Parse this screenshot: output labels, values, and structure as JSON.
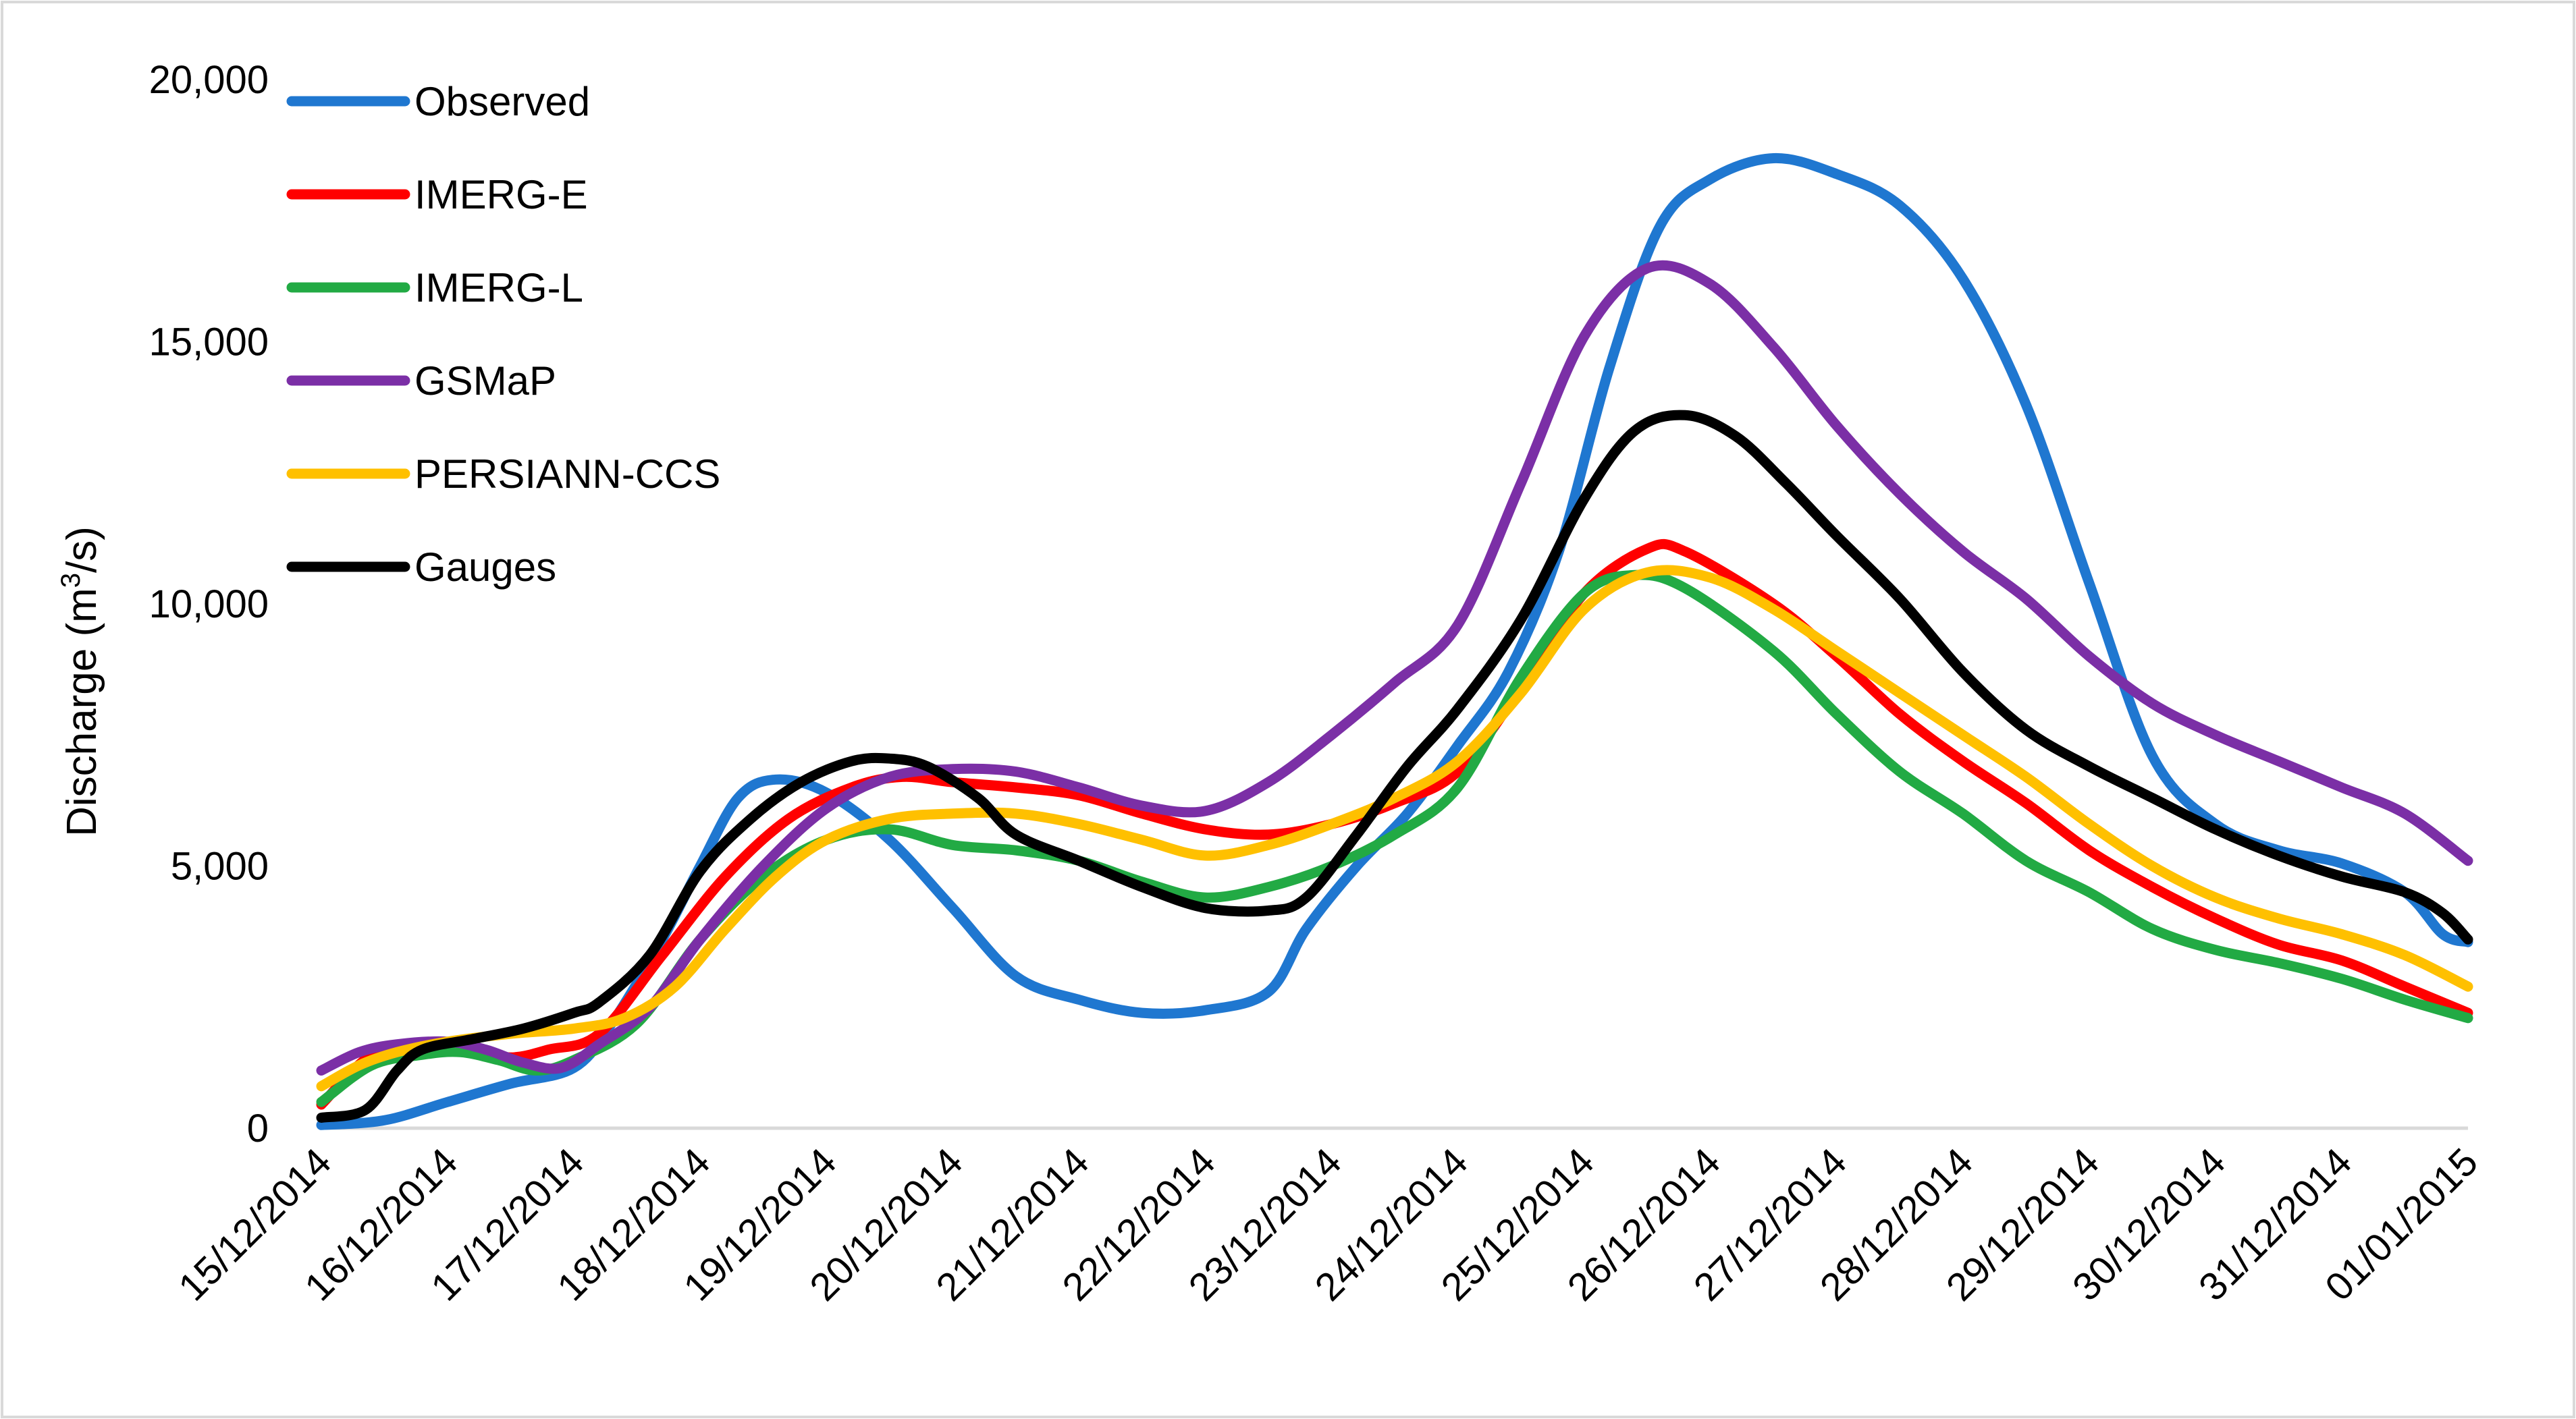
{
  "chart_data": {
    "type": "line",
    "title": "",
    "xlabel": "",
    "ylabel": "Discharge (m",
    "ylabel_superscript": "3",
    "ylabel_suffix": "/s)",
    "ylim": [
      0,
      20000
    ],
    "yticks": [
      0,
      5000,
      10000,
      15000,
      20000
    ],
    "ytick_labels": [
      "0",
      "5,000",
      "10,000",
      "15,000",
      "20,000"
    ],
    "xlim": [
      0,
      17
    ],
    "x_tick_labels": [
      "15/12/2014",
      "16/12/2014",
      "17/12/2014",
      "18/12/2014",
      "19/12/2014",
      "20/12/2014",
      "21/12/2014",
      "22/12/2014",
      "23/12/2014",
      "24/12/2014",
      "25/12/2014",
      "26/12/2014",
      "27/12/2014",
      "28/12/2014",
      "29/12/2014",
      "30/12/2014",
      "31/12/2014",
      "01/01/2015"
    ],
    "grid": false,
    "legend_position": "top-left",
    "series": [
      {
        "name": "Observed",
        "color": "#1f77d0",
        "points": [
          [
            0,
            60
          ],
          [
            0.5,
            150
          ],
          [
            1,
            500
          ],
          [
            1.5,
            850
          ],
          [
            2,
            1150
          ],
          [
            2.3,
            2000
          ],
          [
            2.7,
            3600
          ],
          [
            3,
            5000
          ],
          [
            3.3,
            6300
          ],
          [
            3.6,
            6650
          ],
          [
            4,
            6400
          ],
          [
            4.5,
            5500
          ],
          [
            5,
            4200
          ],
          [
            5.5,
            2900
          ],
          [
            6,
            2450
          ],
          [
            6.5,
            2200
          ],
          [
            7,
            2250
          ],
          [
            7.5,
            2600
          ],
          [
            7.8,
            3800
          ],
          [
            8.2,
            5000
          ],
          [
            8.6,
            6000
          ],
          [
            9,
            7300
          ],
          [
            9.4,
            8700
          ],
          [
            9.8,
            11000
          ],
          [
            10.2,
            14500
          ],
          [
            10.6,
            17200
          ],
          [
            11,
            18100
          ],
          [
            11.5,
            18500
          ],
          [
            12,
            18200
          ],
          [
            12.5,
            17600
          ],
          [
            13,
            16200
          ],
          [
            13.5,
            13800
          ],
          [
            14,
            10400
          ],
          [
            14.5,
            7100
          ],
          [
            15,
            5800
          ],
          [
            15.5,
            5300
          ],
          [
            16,
            5050
          ],
          [
            16.5,
            4500
          ],
          [
            16.8,
            3700
          ],
          [
            17,
            3550
          ]
        ]
      },
      {
        "name": "IMERG-E",
        "color": "#ff0000",
        "points": [
          [
            0,
            450
          ],
          [
            0.4,
            1400
          ],
          [
            0.8,
            1600
          ],
          [
            1.2,
            1500
          ],
          [
            1.5,
            1350
          ],
          [
            1.8,
            1500
          ],
          [
            2.2,
            1800
          ],
          [
            2.7,
            3300
          ],
          [
            3.2,
            4800
          ],
          [
            3.7,
            5900
          ],
          [
            4.2,
            6500
          ],
          [
            4.6,
            6700
          ],
          [
            5,
            6600
          ],
          [
            5.5,
            6500
          ],
          [
            6,
            6350
          ],
          [
            6.5,
            6000
          ],
          [
            7,
            5700
          ],
          [
            7.5,
            5600
          ],
          [
            8,
            5800
          ],
          [
            8.5,
            6200
          ],
          [
            9,
            6800
          ],
          [
            9.5,
            8400
          ],
          [
            10,
            10200
          ],
          [
            10.5,
            11050
          ],
          [
            10.8,
            11000
          ],
          [
            11.5,
            10000
          ],
          [
            12,
            9000
          ],
          [
            12.5,
            7900
          ],
          [
            13,
            7000
          ],
          [
            13.5,
            6200
          ],
          [
            14,
            5300
          ],
          [
            14.5,
            4600
          ],
          [
            15,
            4000
          ],
          [
            15.5,
            3500
          ],
          [
            16,
            3200
          ],
          [
            16.5,
            2700
          ],
          [
            17,
            2200
          ]
        ]
      },
      {
        "name": "IMERG-L",
        "color": "#22aa44",
        "points": [
          [
            0,
            500
          ],
          [
            0.4,
            1200
          ],
          [
            0.8,
            1400
          ],
          [
            1.1,
            1450
          ],
          [
            1.4,
            1300
          ],
          [
            1.7,
            1100
          ],
          [
            2,
            1300
          ],
          [
            2.5,
            2000
          ],
          [
            3,
            3600
          ],
          [
            3.5,
            4800
          ],
          [
            4,
            5500
          ],
          [
            4.5,
            5700
          ],
          [
            5,
            5400
          ],
          [
            5.5,
            5300
          ],
          [
            6,
            5100
          ],
          [
            6.5,
            4700
          ],
          [
            7,
            4400
          ],
          [
            7.5,
            4600
          ],
          [
            8,
            5000
          ],
          [
            8.5,
            5600
          ],
          [
            9,
            6500
          ],
          [
            9.5,
            8600
          ],
          [
            10,
            10200
          ],
          [
            10.4,
            10550
          ],
          [
            10.8,
            10300
          ],
          [
            11.5,
            9100
          ],
          [
            12,
            7900
          ],
          [
            12.5,
            6800
          ],
          [
            13,
            6000
          ],
          [
            13.5,
            5100
          ],
          [
            14,
            4500
          ],
          [
            14.5,
            3800
          ],
          [
            15,
            3400
          ],
          [
            15.5,
            3150
          ],
          [
            16,
            2850
          ],
          [
            16.5,
            2450
          ],
          [
            17,
            2100
          ]
        ]
      },
      {
        "name": "GSMaP",
        "color": "#7b2fa6",
        "points": [
          [
            0,
            1100
          ],
          [
            0.3,
            1450
          ],
          [
            0.6,
            1600
          ],
          [
            1,
            1650
          ],
          [
            1.3,
            1500
          ],
          [
            1.6,
            1250
          ],
          [
            1.9,
            1150
          ],
          [
            2.2,
            1600
          ],
          [
            2.6,
            2300
          ],
          [
            3,
            3600
          ],
          [
            3.5,
            5000
          ],
          [
            4,
            6100
          ],
          [
            4.5,
            6700
          ],
          [
            5,
            6850
          ],
          [
            5.5,
            6800
          ],
          [
            6,
            6500
          ],
          [
            6.5,
            6150
          ],
          [
            7,
            6050
          ],
          [
            7.5,
            6600
          ],
          [
            8,
            7500
          ],
          [
            8.5,
            8500
          ],
          [
            9,
            9600
          ],
          [
            9.5,
            12300
          ],
          [
            10,
            15100
          ],
          [
            10.5,
            16400
          ],
          [
            11,
            16100
          ],
          [
            11.5,
            14900
          ],
          [
            12,
            13400
          ],
          [
            12.5,
            12100
          ],
          [
            13,
            11000
          ],
          [
            13.5,
            10100
          ],
          [
            14,
            9000
          ],
          [
            14.5,
            8100
          ],
          [
            15,
            7500
          ],
          [
            15.5,
            7000
          ],
          [
            16,
            6500
          ],
          [
            16.5,
            6000
          ],
          [
            17,
            5100
          ]
        ]
      },
      {
        "name": "PERSIANN-CCS",
        "color": "#ffc000",
        "points": [
          [
            0,
            800
          ],
          [
            0.3,
            1200
          ],
          [
            0.6,
            1450
          ],
          [
            1,
            1650
          ],
          [
            1.5,
            1800
          ],
          [
            2,
            1900
          ],
          [
            2.4,
            2100
          ],
          [
            2.8,
            2700
          ],
          [
            3.2,
            3800
          ],
          [
            3.6,
            4800
          ],
          [
            4,
            5500
          ],
          [
            4.5,
            5900
          ],
          [
            5,
            6000
          ],
          [
            5.5,
            6000
          ],
          [
            6,
            5800
          ],
          [
            6.5,
            5500
          ],
          [
            7,
            5200
          ],
          [
            7.5,
            5400
          ],
          [
            8,
            5800
          ],
          [
            8.5,
            6300
          ],
          [
            9,
            7000
          ],
          [
            9.5,
            8300
          ],
          [
            10,
            9900
          ],
          [
            10.5,
            10600
          ],
          [
            11,
            10500
          ],
          [
            11.5,
            9900
          ],
          [
            12,
            9100
          ],
          [
            12.5,
            8300
          ],
          [
            13,
            7500
          ],
          [
            13.5,
            6700
          ],
          [
            14,
            5800
          ],
          [
            14.5,
            5000
          ],
          [
            15,
            4400
          ],
          [
            15.5,
            4000
          ],
          [
            16,
            3700
          ],
          [
            16.5,
            3300
          ],
          [
            17,
            2700
          ]
        ]
      },
      {
        "name": "Gauges",
        "color": "#000000",
        "points": [
          [
            0,
            200
          ],
          [
            0.35,
            350
          ],
          [
            0.6,
            1100
          ],
          [
            0.8,
            1500
          ],
          [
            1.2,
            1700
          ],
          [
            1.6,
            1900
          ],
          [
            2,
            2200
          ],
          [
            2.2,
            2400
          ],
          [
            2.6,
            3300
          ],
          [
            3,
            4900
          ],
          [
            3.4,
            5900
          ],
          [
            3.8,
            6600
          ],
          [
            4.2,
            7000
          ],
          [
            4.5,
            7050
          ],
          [
            4.8,
            6900
          ],
          [
            5.2,
            6300
          ],
          [
            5.5,
            5600
          ],
          [
            6,
            5100
          ],
          [
            6.5,
            4600
          ],
          [
            7,
            4200
          ],
          [
            7.5,
            4150
          ],
          [
            7.8,
            4400
          ],
          [
            8.2,
            5600
          ],
          [
            8.6,
            6900
          ],
          [
            9,
            8000
          ],
          [
            9.5,
            9700
          ],
          [
            10,
            12000
          ],
          [
            10.4,
            13300
          ],
          [
            10.8,
            13600
          ],
          [
            11.2,
            13200
          ],
          [
            11.6,
            12300
          ],
          [
            12,
            11300
          ],
          [
            12.5,
            10100
          ],
          [
            13,
            8700
          ],
          [
            13.5,
            7600
          ],
          [
            14,
            6900
          ],
          [
            14.5,
            6300
          ],
          [
            15,
            5700
          ],
          [
            15.5,
            5200
          ],
          [
            16,
            4800
          ],
          [
            16.5,
            4500
          ],
          [
            16.8,
            4100
          ],
          [
            17,
            3600
          ]
        ]
      }
    ]
  }
}
